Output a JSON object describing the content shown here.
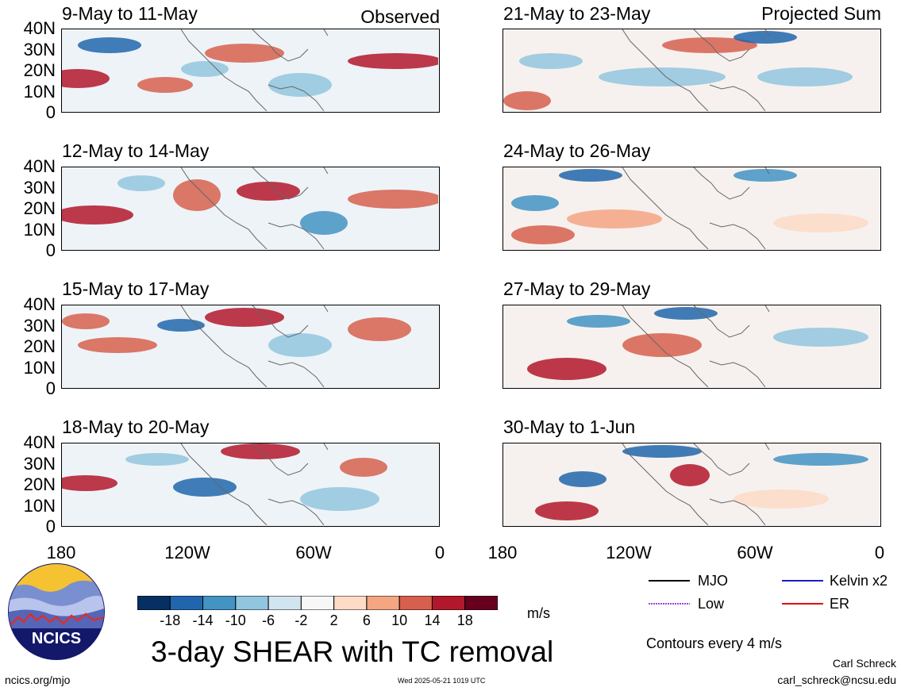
{
  "left_column_label": "Observed",
  "right_column_label": "Projected Sum",
  "panels": [
    {
      "title": "9-May to 11-May"
    },
    {
      "title": "21-May to 23-May"
    },
    {
      "title": "12-May to 14-May"
    },
    {
      "title": "24-May to 26-May"
    },
    {
      "title": "15-May to 17-May"
    },
    {
      "title": "27-May to 29-May"
    },
    {
      "title": "18-May to 20-May"
    },
    {
      "title": "30-May to 1-Jun"
    }
  ],
  "y_ticks": [
    "40N",
    "30N",
    "20N",
    "10N",
    "0"
  ],
  "x_ticks": [
    "180",
    "120W",
    "60W",
    "0"
  ],
  "colorbar": {
    "labels": [
      "-18",
      "-14",
      "-10",
      "-6",
      "-2",
      "2",
      "6",
      "10",
      "14",
      "18"
    ],
    "colors": [
      "#053061",
      "#2166ac",
      "#4393c3",
      "#92c5de",
      "#d1e5f0",
      "#f7f7f7",
      "#fddbc7",
      "#f4a582",
      "#d6604d",
      "#b2182b",
      "#67001f"
    ],
    "units": "m/s"
  },
  "main_title": "3-day SHEAR with TC removal",
  "legend": {
    "items": [
      {
        "label": "MJO",
        "color": "#000000",
        "style": "solid"
      },
      {
        "label": "Kelvin x2",
        "color": "#1a1acc",
        "style": "solid"
      },
      {
        "label": "Low",
        "color": "#a040e0",
        "style": "dotted"
      },
      {
        "label": "ER",
        "color": "#e01010",
        "style": "solid"
      }
    ],
    "note": "Contours every 4 m/s"
  },
  "logo_text": "NCICS",
  "footer": {
    "url": "ncics.org/mjo",
    "timestamp": "Wed 2025-05-21 1019 UTC",
    "author": "Carl Schreck",
    "email": "carl_schreck@ncsu.edu"
  }
}
